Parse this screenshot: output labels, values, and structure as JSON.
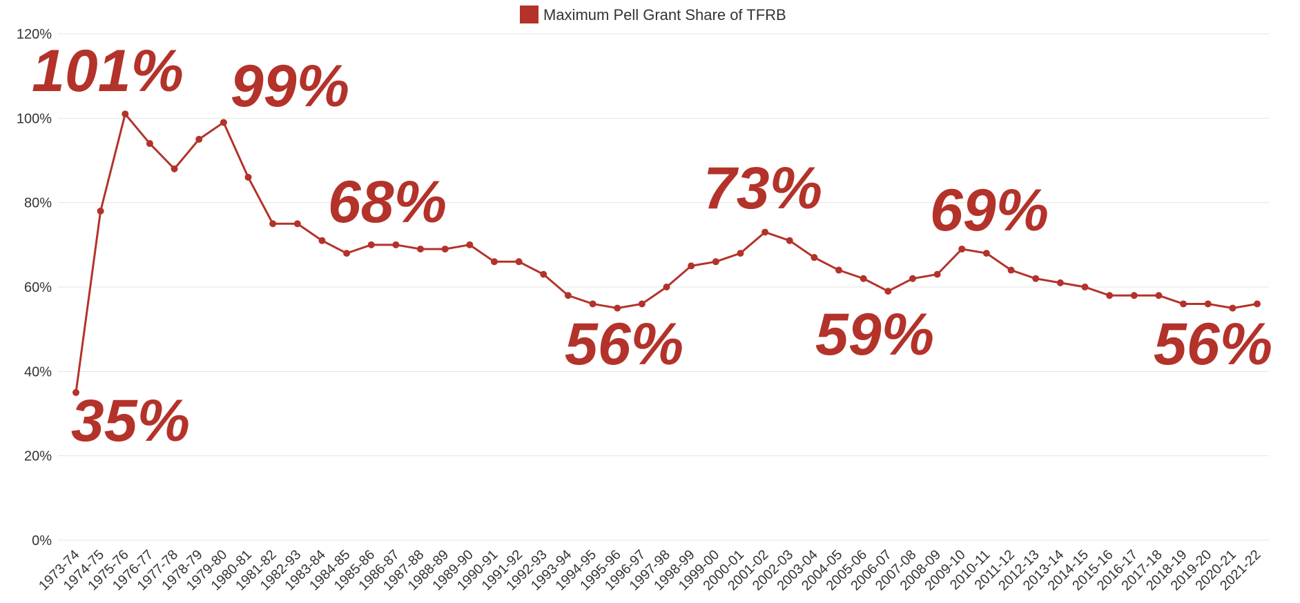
{
  "chart_data": {
    "type": "line",
    "legend": "top",
    "grid": true,
    "categories": [
      "1973-74",
      "1974-75",
      "1975-76",
      "1976-77",
      "1977-78",
      "1978-79",
      "1979-80",
      "1980-81",
      "1981-82",
      "1982-93",
      "1983-84",
      "1984-85",
      "1985-86",
      "1986-87",
      "1987-88",
      "1988-89",
      "1989-90",
      "1990-91",
      "1991-92",
      "1992-93",
      "1993-94",
      "1994-95",
      "1995-96",
      "1996-97",
      "1997-98",
      "1998-99",
      "1999-00",
      "2000-01",
      "2001-02",
      "2002-03",
      "2003-04",
      "2004-05",
      "2005-06",
      "2006-07",
      "2007-08",
      "2008-09",
      "2009-10",
      "2010-11",
      "2011-12",
      "2012-13",
      "2013-14",
      "2014-15",
      "2015-16",
      "2016-17",
      "2017-18",
      "2018-19",
      "2019-20",
      "2020-21",
      "2021-22"
    ],
    "series": [
      {
        "name": "Maximum Pell Grant Share of TFRB",
        "color": "#b3322a",
        "values": [
          35,
          78,
          101,
          94,
          88,
          95,
          99,
          86,
          75,
          75,
          71,
          68,
          70,
          70,
          69,
          69,
          70,
          66,
          66,
          63,
          58,
          56,
          55,
          56,
          60,
          65,
          66,
          68,
          73,
          71,
          67,
          64,
          62,
          59,
          62,
          63,
          69,
          68,
          64,
          62,
          61,
          60,
          58,
          58,
          58,
          56,
          56,
          55,
          56
        ]
      }
    ],
    "ylim": [
      0,
      120
    ],
    "yticks": [
      {
        "value": 0,
        "label": "0%"
      },
      {
        "value": 20,
        "label": "20%"
      },
      {
        "value": 40,
        "label": "40%"
      },
      {
        "value": 60,
        "label": "60%"
      },
      {
        "value": 80,
        "label": "80%"
      },
      {
        "value": 100,
        "label": "100%"
      },
      {
        "value": 120,
        "label": "120%"
      }
    ],
    "annotations": [
      "101%",
      "99%",
      "68%",
      "73%",
      "69%",
      "56%",
      "59%",
      "56%",
      "35%"
    ]
  }
}
